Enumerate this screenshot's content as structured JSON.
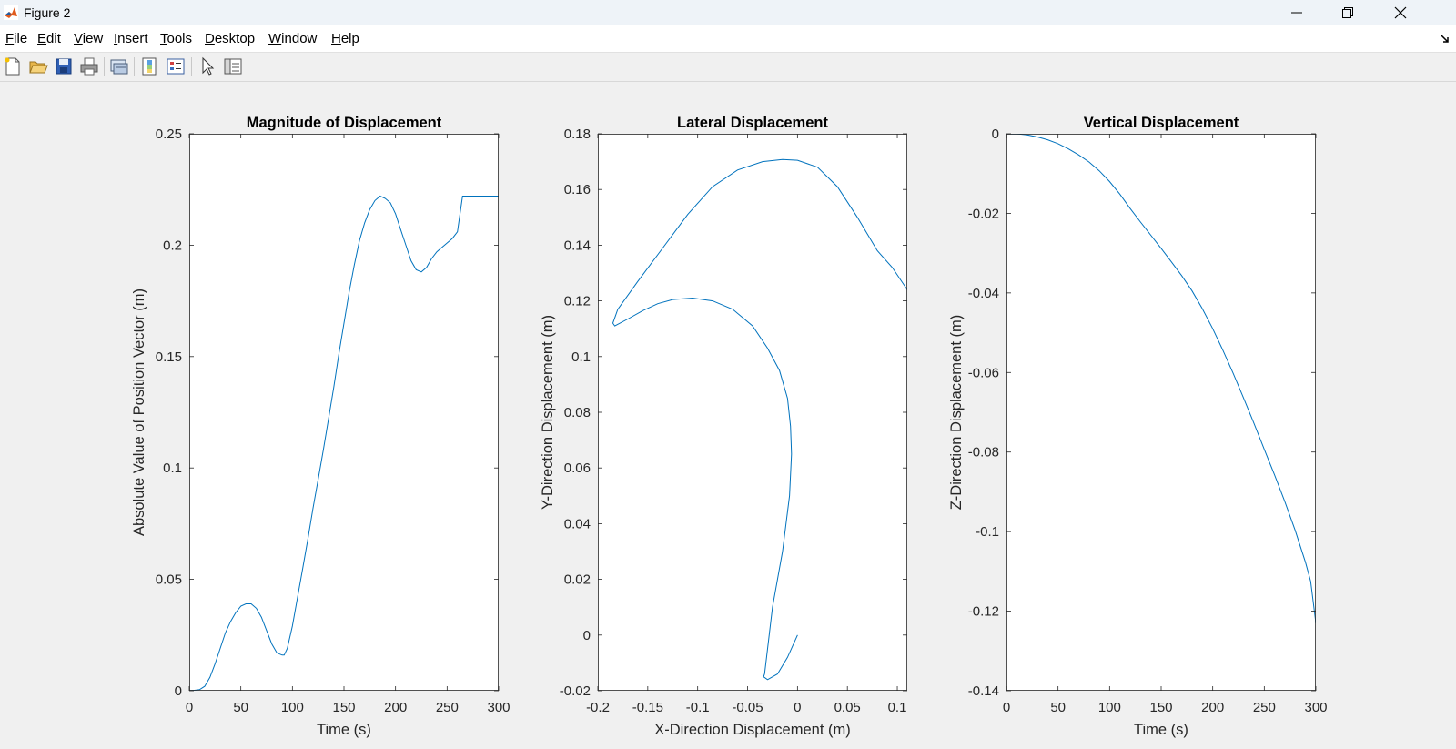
{
  "window": {
    "title": "Figure 2"
  },
  "menu": [
    {
      "pre": "",
      "u": "F",
      "post": "ile"
    },
    {
      "pre": "",
      "u": "E",
      "post": "dit"
    },
    {
      "pre": "",
      "u": "V",
      "post": "iew"
    },
    {
      "pre": "",
      "u": "I",
      "post": "nsert"
    },
    {
      "pre": "",
      "u": "T",
      "post": "ools"
    },
    {
      "pre": "",
      "u": "D",
      "post": "esktop"
    },
    {
      "pre": "",
      "u": "W",
      "post": "indow"
    },
    {
      "pre": "",
      "u": "H",
      "post": "elp"
    }
  ],
  "toolbar": [
    "new-figure-icon",
    "open-file-icon",
    "save-icon",
    "print-icon",
    "link-plot-icon",
    "colorbar-icon",
    "legend-icon",
    "edit-plot-arrow-icon",
    "property-inspector-icon"
  ],
  "colors": {
    "line": "#0072bd",
    "axes_bg": "#ffffff",
    "figure_bg": "#f0f0f0"
  },
  "chart_data": [
    {
      "type": "line",
      "title": "Magnitude of Displacement",
      "xlabel": "Time (s)",
      "ylabel": "Absolute Value of Position Vector (m)",
      "xlim": [
        0,
        300
      ],
      "ylim": [
        0,
        0.25
      ],
      "xticks": [
        0,
        50,
        100,
        150,
        200,
        250,
        300
      ],
      "xticklabels": [
        "0",
        "50",
        "100",
        "150",
        "200",
        "250",
        "300"
      ],
      "yticks": [
        0,
        0.05,
        0.1,
        0.15,
        0.2,
        0.25
      ],
      "yticklabels": [
        "0",
        "0.05",
        "0.1",
        "0.15",
        "0.2",
        "0.25"
      ],
      "x": [
        0,
        5,
        10,
        15,
        20,
        25,
        30,
        35,
        40,
        45,
        50,
        55,
        60,
        65,
        70,
        75,
        80,
        85,
        90,
        92,
        95,
        100,
        105,
        110,
        115,
        120,
        125,
        130,
        135,
        140,
        145,
        150,
        155,
        160,
        165,
        170,
        175,
        180,
        185,
        190,
        195,
        200,
        205,
        210,
        215,
        220,
        225,
        230,
        235,
        240,
        245,
        250,
        255,
        260,
        265,
        270,
        275,
        280,
        285,
        290,
        295,
        300
      ],
      "y": [
        0,
        0.0002,
        0.0005,
        0.002,
        0.006,
        0.012,
        0.019,
        0.026,
        0.031,
        0.035,
        0.038,
        0.039,
        0.039,
        0.037,
        0.033,
        0.027,
        0.021,
        0.017,
        0.016,
        0.016,
        0.019,
        0.029,
        0.042,
        0.055,
        0.068,
        0.082,
        0.095,
        0.108,
        0.122,
        0.136,
        0.151,
        0.165,
        0.179,
        0.191,
        0.202,
        0.21,
        0.216,
        0.22,
        0.222,
        0.221,
        0.219,
        0.214,
        0.207,
        0.2,
        0.193,
        0.189,
        0.188,
        0.19,
        0.194,
        0.197,
        0.199,
        0.201,
        0.203,
        0.206,
        0.222,
        0.222,
        0.222,
        0.222,
        0.222,
        0.222,
        0.222,
        0.222
      ]
    },
    {
      "type": "line",
      "title": "Lateral Displacement",
      "xlabel": "X-Direction Displacement (m)",
      "ylabel": "Y-Direction Displacement (m)",
      "xlim": [
        -0.2,
        0.11
      ],
      "ylim": [
        -0.02,
        0.18
      ],
      "xticks": [
        -0.2,
        -0.15,
        -0.1,
        -0.05,
        0,
        0.05,
        0.1
      ],
      "xticklabels": [
        "-0.2",
        "-0.15",
        "-0.1",
        "-0.05",
        "0",
        "0.05",
        "0.1"
      ],
      "yticks": [
        -0.02,
        0,
        0.02,
        0.04,
        0.06,
        0.08,
        0.1,
        0.12,
        0.14,
        0.16,
        0.18
      ],
      "yticklabels": [
        "-0.02",
        "0",
        "0.02",
        "0.04",
        "0.06",
        "0.08",
        "0.1",
        "0.12",
        "0.14",
        "0.16",
        "0.18"
      ],
      "x": [
        0,
        -0.01,
        -0.02,
        -0.03,
        -0.034,
        -0.033,
        -0.025,
        -0.015,
        -0.008,
        -0.006,
        -0.007,
        -0.01,
        -0.018,
        -0.03,
        -0.045,
        -0.065,
        -0.085,
        -0.105,
        -0.125,
        -0.14,
        -0.155,
        -0.17,
        -0.183,
        -0.185,
        -0.18,
        -0.16,
        -0.135,
        -0.11,
        -0.085,
        -0.06,
        -0.035,
        -0.015,
        0,
        0.02,
        0.04,
        0.06,
        0.08,
        0.095,
        0.11
      ],
      "y": [
        0,
        -0.008,
        -0.014,
        -0.016,
        -0.015,
        -0.014,
        0.01,
        0.03,
        0.05,
        0.065,
        0.075,
        0.085,
        0.095,
        0.103,
        0.111,
        0.117,
        0.12,
        0.121,
        0.1205,
        0.119,
        0.1165,
        0.1135,
        0.111,
        0.112,
        0.117,
        0.127,
        0.139,
        0.151,
        0.161,
        0.167,
        0.17,
        0.1708,
        0.1705,
        0.168,
        0.161,
        0.15,
        0.138,
        0.132,
        0.124
      ]
    },
    {
      "type": "line",
      "title": "Vertical Displacement",
      "xlabel": "Time (s)",
      "ylabel": "Z-Direction Displacement (m)",
      "xlim": [
        0,
        300
      ],
      "ylim": [
        -0.14,
        0
      ],
      "xticks": [
        0,
        50,
        100,
        150,
        200,
        250,
        300
      ],
      "xticklabels": [
        "0",
        "50",
        "100",
        "150",
        "200",
        "250",
        "300"
      ],
      "yticks": [
        -0.14,
        -0.12,
        -0.1,
        -0.08,
        -0.06,
        -0.04,
        -0.02,
        0
      ],
      "yticklabels": [
        "-0.14",
        "-0.12",
        "-0.1",
        "-0.08",
        "-0.06",
        "-0.04",
        "-0.02",
        "0"
      ],
      "x": [
        0,
        10,
        20,
        30,
        40,
        50,
        60,
        70,
        80,
        90,
        100,
        110,
        120,
        130,
        140,
        150,
        160,
        170,
        180,
        190,
        200,
        210,
        220,
        230,
        240,
        250,
        260,
        270,
        280,
        290,
        295,
        300
      ],
      "y": [
        0,
        0,
        -0.0003,
        -0.0008,
        -0.0015,
        -0.0025,
        -0.0038,
        -0.0053,
        -0.0071,
        -0.0093,
        -0.012,
        -0.0152,
        -0.0188,
        -0.0222,
        -0.0255,
        -0.0288,
        -0.0322,
        -0.0357,
        -0.0395,
        -0.044,
        -0.049,
        -0.0545,
        -0.0603,
        -0.0665,
        -0.0728,
        -0.0793,
        -0.0858,
        -0.0925,
        -0.0997,
        -0.1078,
        -0.1125,
        -0.123
      ]
    }
  ]
}
